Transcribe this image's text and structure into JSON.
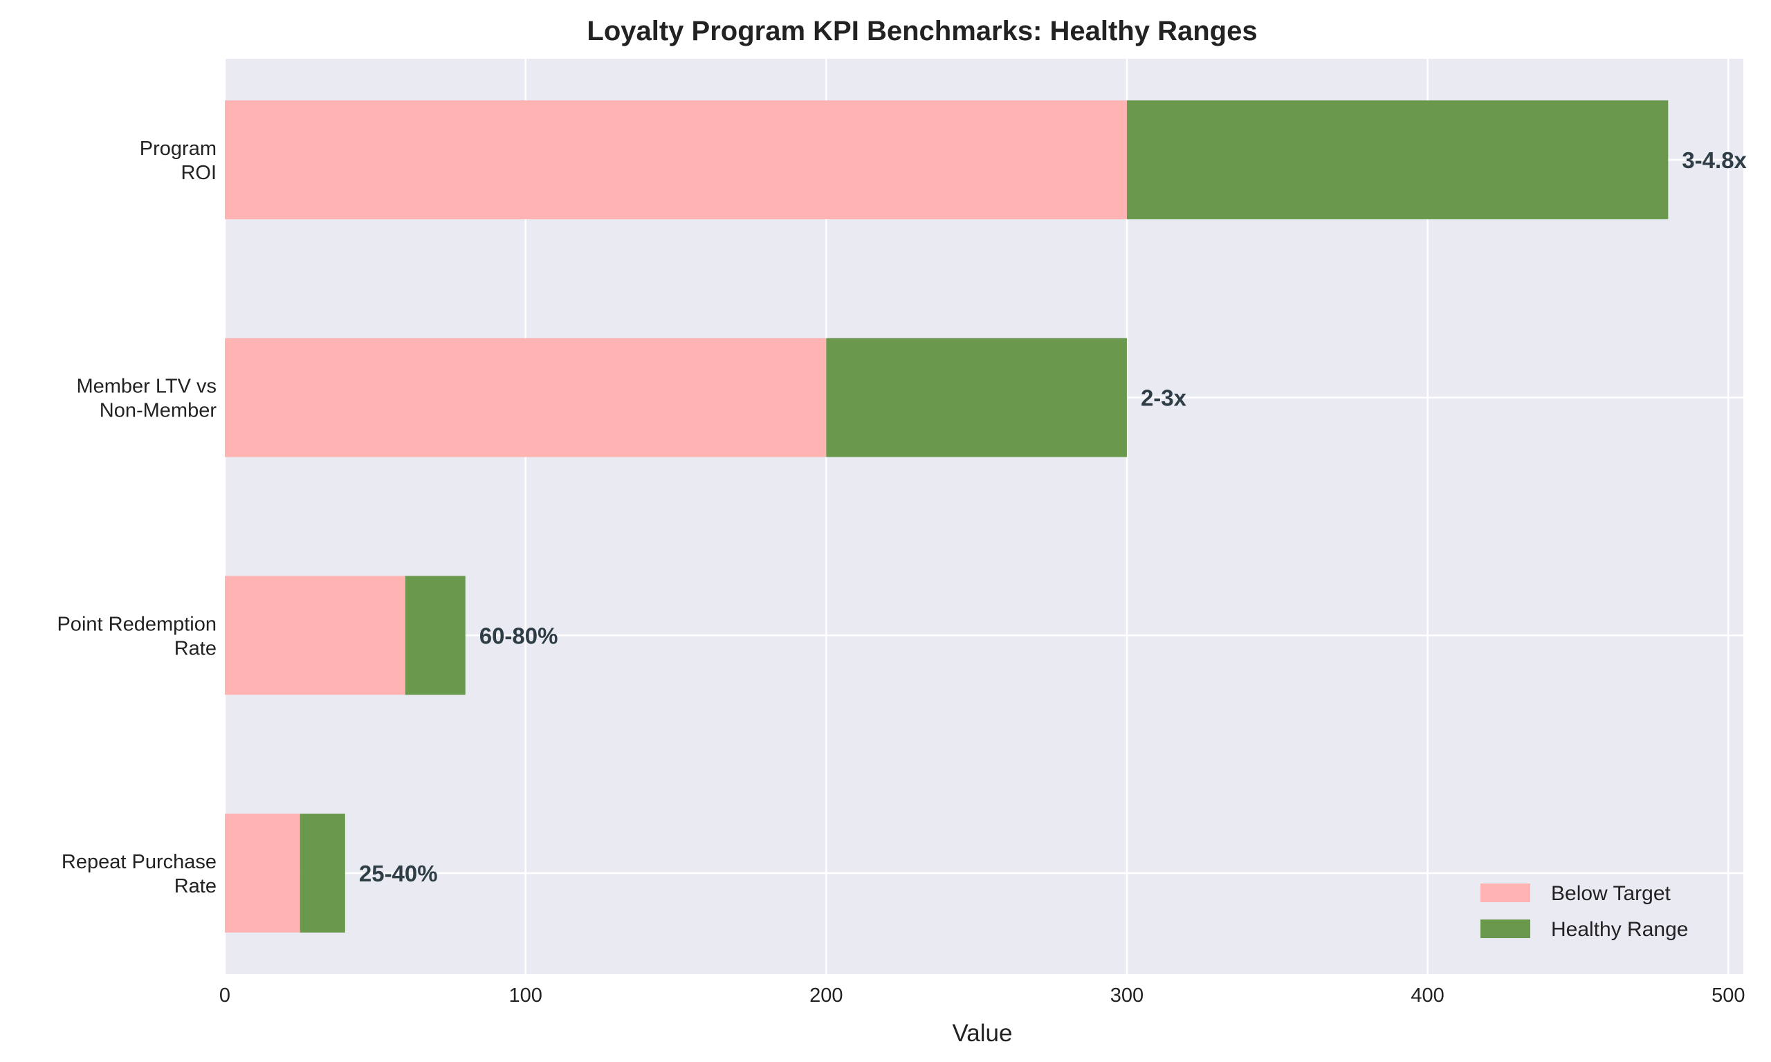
{
  "chart_data": {
    "type": "bar",
    "orientation": "horizontal",
    "stacked": true,
    "title": "Loyalty Program KPI Benchmarks: Healthy Ranges",
    "xlabel": "Value",
    "ylabel": "",
    "xlim": [
      0,
      505
    ],
    "xticks": [
      0,
      100,
      200,
      300,
      400,
      500
    ],
    "grid": true,
    "legend_position": "bottom-right",
    "categories": [
      "Program\nROI",
      "Member LTV vs\nNon-Member",
      "Point Redemption\nRate",
      "Repeat Purchase\nRate"
    ],
    "series": [
      {
        "name": "Below Target",
        "color": "#ffb3b3",
        "values": [
          300,
          200,
          60,
          25
        ]
      },
      {
        "name": "Healthy Range",
        "color": "#6a994e",
        "values": [
          180,
          100,
          20,
          15
        ]
      }
    ],
    "annotations": [
      "3-4.8x",
      "2-3x",
      "60-80%",
      "25-40%"
    ],
    "colors": {
      "background": "#eaeaf2",
      "grid": "#ffffff",
      "annotation": "#2f3e46",
      "text": "#222222"
    }
  }
}
